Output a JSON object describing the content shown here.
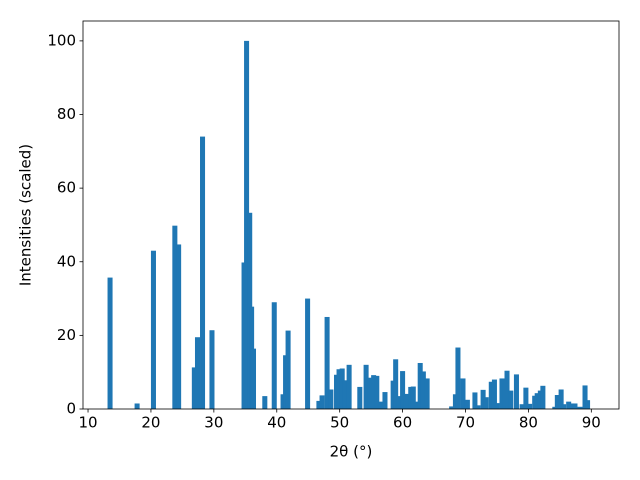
{
  "chart_data": {
    "type": "bar",
    "x_label": "2θ (°)",
    "y_label": "Intensities (scaled)",
    "color": "#1f77b4",
    "x": [
      13.5,
      17.8,
      20.4,
      23.8,
      24.4,
      26.9,
      27.4,
      28.2,
      29.7,
      34.8,
      35.2,
      35.7,
      36.0,
      36.3,
      38.1,
      39.6,
      41.0,
      41.4,
      41.8,
      44.9,
      46.7,
      47.2,
      48.0,
      48.6,
      49.5,
      49.9,
      50.4,
      50.9,
      51.5,
      53.2,
      54.2,
      54.8,
      55.4,
      55.9,
      56.6,
      57.2,
      58.5,
      58.9,
      59.5,
      60.0,
      60.6,
      61.3,
      61.7,
      62.3,
      62.8,
      63.3,
      63.9,
      67.8,
      68.4,
      68.8,
      69.6,
      70.3,
      71.5,
      72.0,
      72.8,
      73.3,
      74.1,
      74.6,
      75.0,
      75.8,
      76.3,
      76.6,
      77.2,
      78.1,
      79.0,
      79.6,
      80.2,
      81.0,
      81.4,
      81.9,
      82.3,
      84.2,
      84.6,
      85.2,
      85.6,
      86.4,
      86.9,
      87.4,
      88.2,
      89.0,
      89.4
    ],
    "values": [
      35.7,
      1.5,
      43,
      49.8,
      44.7,
      11.3,
      19.5,
      74,
      21.4,
      39.8,
      100,
      53.3,
      27.8,
      16.4,
      3.5,
      29,
      4,
      14.6,
      21.3,
      30,
      2.2,
      3.7,
      25,
      5.3,
      9.3,
      10.8,
      11,
      7.8,
      12,
      6,
      12,
      8.5,
      9.2,
      9,
      2,
      4.6,
      7.7,
      13.5,
      3.5,
      10.3,
      4.1,
      6,
      6.1,
      2,
      12.5,
      10.2,
      8.3,
      0.7,
      4,
      16.7,
      8.3,
      2.5,
      4.5,
      1,
      5.2,
      3.2,
      7.4,
      8,
      1.6,
      8.3,
      7,
      10.4,
      5,
      9.4,
      1.3,
      5.8,
      1.4,
      3.6,
      4.3,
      5,
      6.3,
      0.6,
      3.8,
      5.3,
      1.3,
      2,
      1.5,
      1.5,
      0.6,
      6.4,
      2.4
    ],
    "xlim": [
      9.2,
      94.4
    ],
    "ylim": [
      0,
      105.4
    ],
    "xticks": [
      10,
      20,
      30,
      40,
      50,
      60,
      70,
      80,
      90
    ],
    "yticks": [
      0,
      20,
      40,
      60,
      80,
      100
    ]
  }
}
